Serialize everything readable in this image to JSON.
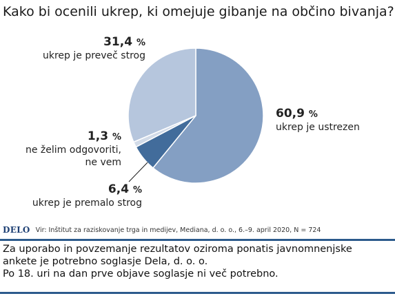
{
  "title": "Kako bi ocenili ukrep, ki omejuje gibanje na občino bivanja?",
  "chart_data": {
    "type": "pie",
    "slices": [
      {
        "value": 60.9,
        "pct_label": "60,9",
        "unit": "%",
        "label_lines": [
          "ukrep je ustrezen"
        ],
        "color": "#849fc3"
      },
      {
        "value": 6.4,
        "pct_label": "6,4",
        "unit": "%",
        "label_lines": [
          "ukrep je premalo strog"
        ],
        "color": "#426c9b"
      },
      {
        "value": 1.3,
        "pct_label": "1,3",
        "unit": "%",
        "label_lines": [
          "ne želim odgovoriti,",
          "ne vem"
        ],
        "color": "#d2dbe8"
      },
      {
        "value": 31.4,
        "pct_label": "31,4",
        "unit": "%",
        "label_lines": [
          "ukrep je preveč strog"
        ],
        "color": "#b6c6dd"
      }
    ]
  },
  "footer": {
    "logo": "DELO",
    "source": "Vir: Inštitut za raziskovanje trga in medijev, Mediana, d. o. o., 6.–9. april 2020, N = 724",
    "notice_lines": [
      "Za uporabo in povzemanje rezultatov oziroma ponatis javnomnenjske",
      "ankete je potrebno soglasje Dela, d. o. o.",
      "Po 18. uri na dan prve objave soglasje ni več potrebno."
    ]
  }
}
